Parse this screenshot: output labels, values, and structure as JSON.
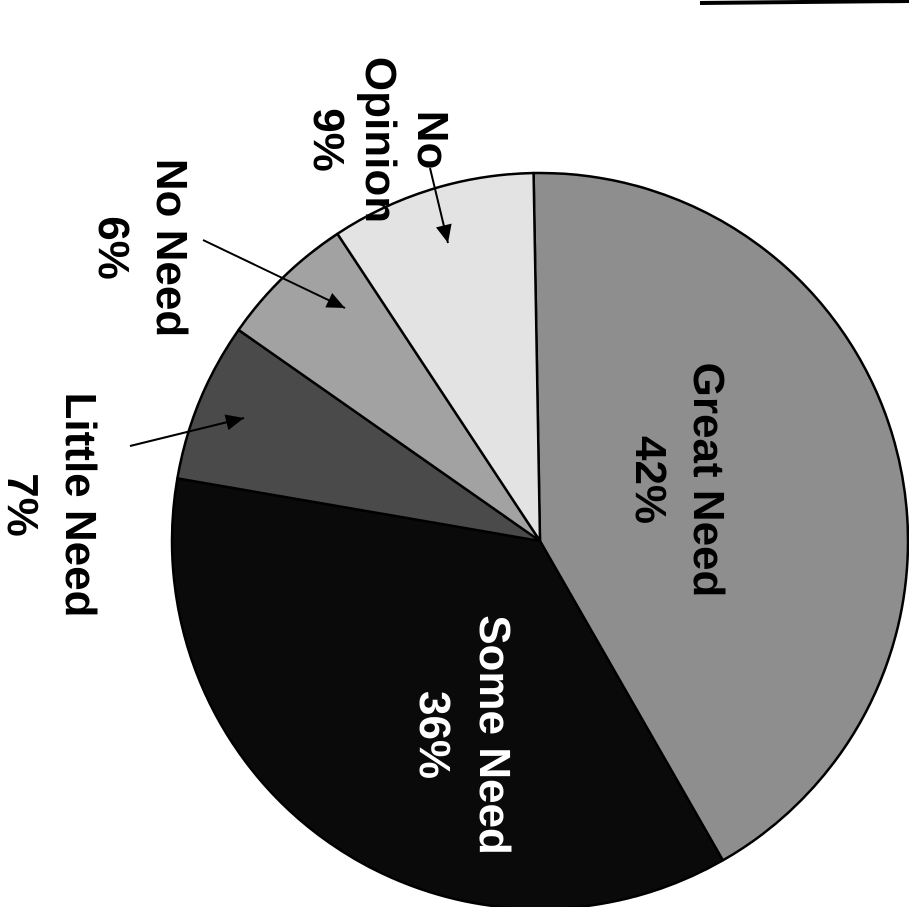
{
  "chart_data": {
    "type": "pie",
    "orientation": "rotated 90 degrees clockwise",
    "slices": [
      {
        "label": "Great Need",
        "percent_label": "42%",
        "value": 42,
        "color": "#8e8e8e"
      },
      {
        "label": "Some Need",
        "percent_label": "36%",
        "value": 36,
        "color": "#0a0a0a"
      },
      {
        "label": "Little Need",
        "percent_label": "7%",
        "value": 7,
        "color": "#4a4a4a"
      },
      {
        "label": "No Need",
        "percent_label": "6%",
        "value": 6,
        "color": "#a2a2a2"
      },
      {
        "label": "No Opinion",
        "label_lines": [
          "No",
          "Opinion"
        ],
        "percent_label": "9%",
        "value": 9,
        "color": "#e3e3e3"
      }
    ]
  }
}
